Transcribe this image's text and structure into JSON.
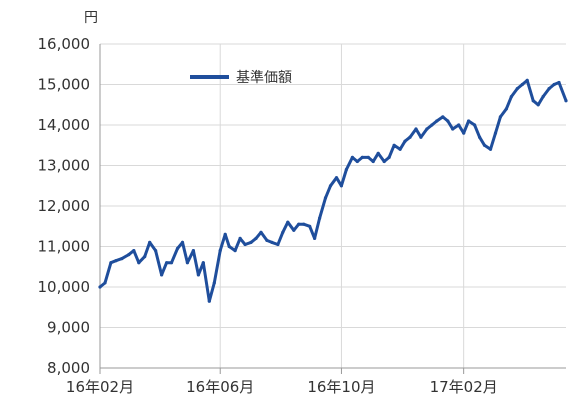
{
  "chart_data": {
    "type": "line",
    "title": "",
    "xlabel": "",
    "ylabel": "円",
    "ylim": [
      8000,
      16000
    ],
    "y_ticks": [
      8000,
      9000,
      10000,
      11000,
      12000,
      13000,
      14000,
      15000,
      16000
    ],
    "y_tick_labels": [
      "8,000",
      "9,000",
      "10,000",
      "11,000",
      "12,000",
      "13,000",
      "14,000",
      "15,000",
      "16,000"
    ],
    "x_tick_labels": [
      "16年02月",
      "16年06月",
      "16年10月",
      "17年02月"
    ],
    "x_tick_dates": [
      "2016-02-01",
      "2016-06-01",
      "2016-10-01",
      "2017-02-01"
    ],
    "xlim": [
      "2016-02-01",
      "2017-05-15"
    ],
    "grid": true,
    "legend_position": "top-left",
    "colors": {
      "series": "#1f4e9c",
      "grid": "#d9d9d9",
      "axis": "#999999"
    },
    "series": [
      {
        "name": "基準価額",
        "x": [
          "2016-02-01",
          "2016-02-06",
          "2016-02-12",
          "2016-02-17",
          "2016-02-23",
          "2016-03-01",
          "2016-03-06",
          "2016-03-11",
          "2016-03-17",
          "2016-03-22",
          "2016-03-28",
          "2016-04-03",
          "2016-04-08",
          "2016-04-13",
          "2016-04-19",
          "2016-04-24",
          "2016-04-29",
          "2016-05-05",
          "2016-05-10",
          "2016-05-15",
          "2016-05-21",
          "2016-05-26",
          "2016-06-01",
          "2016-06-06",
          "2016-06-10",
          "2016-06-16",
          "2016-06-21",
          "2016-06-26",
          "2016-07-02",
          "2016-07-07",
          "2016-07-12",
          "2016-07-18",
          "2016-07-23",
          "2016-07-29",
          "2016-08-03",
          "2016-08-08",
          "2016-08-14",
          "2016-08-19",
          "2016-08-24",
          "2016-08-30",
          "2016-09-04",
          "2016-09-09",
          "2016-09-15",
          "2016-09-20",
          "2016-09-26",
          "2016-10-01",
          "2016-10-06",
          "2016-10-12",
          "2016-10-17",
          "2016-10-22",
          "2016-10-28",
          "2016-11-02",
          "2016-11-07",
          "2016-11-13",
          "2016-11-18",
          "2016-11-23",
          "2016-11-29",
          "2016-12-04",
          "2016-12-09",
          "2016-12-15",
          "2016-12-20",
          "2016-12-26",
          "2016-12-31",
          "2017-01-05",
          "2017-01-11",
          "2017-01-16",
          "2017-01-21",
          "2017-01-27",
          "2017-02-01",
          "2017-02-06",
          "2017-02-12",
          "2017-02-17",
          "2017-02-22",
          "2017-02-28",
          "2017-03-05",
          "2017-03-10",
          "2017-03-16",
          "2017-03-21",
          "2017-03-27",
          "2017-04-01",
          "2017-04-06",
          "2017-04-12",
          "2017-04-17",
          "2017-04-22",
          "2017-04-28",
          "2017-05-03",
          "2017-05-08",
          "2017-05-15"
        ],
        "values": [
          10000,
          10100,
          10600,
          10650,
          10700,
          10800,
          10900,
          10600,
          10750,
          11100,
          10900,
          10300,
          10600,
          10600,
          10950,
          11100,
          10600,
          10900,
          10300,
          10600,
          9650,
          10100,
          10900,
          11300,
          11000,
          10900,
          11200,
          11050,
          11100,
          11200,
          11350,
          11150,
          11100,
          11050,
          11350,
          11600,
          11400,
          11550,
          11550,
          11500,
          11200,
          11700,
          12200,
          12500,
          12700,
          12500,
          12900,
          13200,
          13100,
          13200,
          13200,
          13100,
          13300,
          13100,
          13200,
          13500,
          13400,
          13600,
          13700,
          13900,
          13700,
          13900,
          14000,
          14100,
          14200,
          14100,
          13900,
          14000,
          13800,
          14100,
          14000,
          13700,
          13500,
          13400,
          13800,
          14200,
          14400,
          14700,
          14900,
          15000,
          15100,
          14600,
          14500,
          14700,
          14900,
          15000,
          15050,
          14600
        ]
      }
    ]
  }
}
